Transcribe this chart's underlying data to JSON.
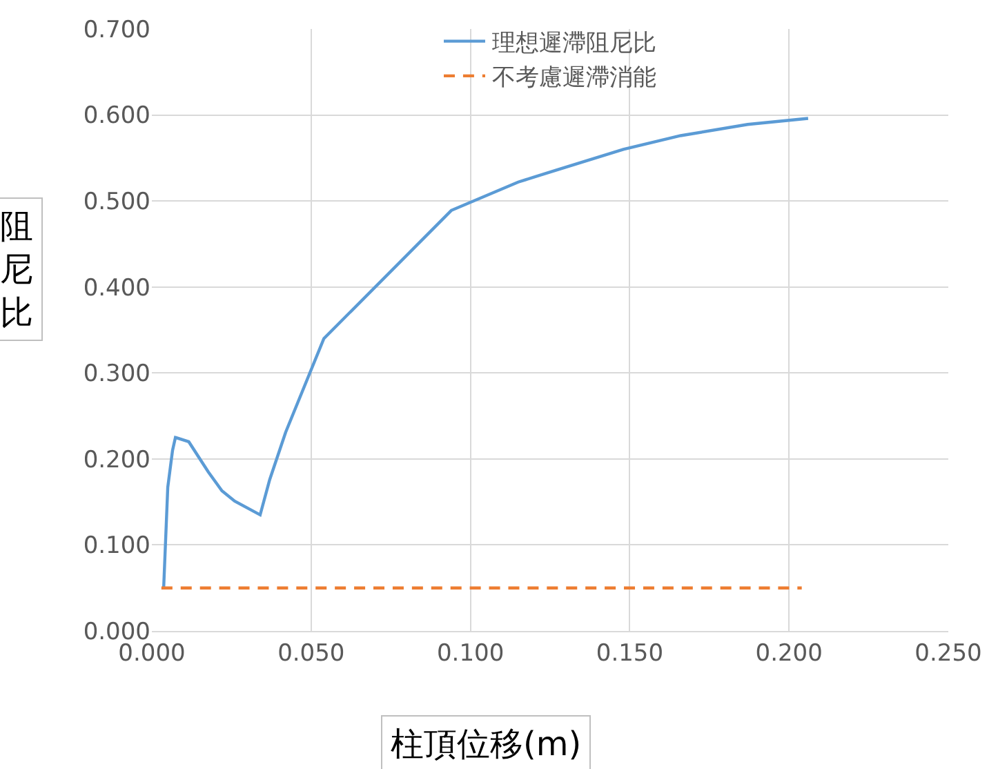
{
  "chart_data": {
    "type": "line",
    "xlabel": "柱頂位移(m)",
    "ylabel": "阻尼比",
    "xlim": [
      0,
      0.25
    ],
    "xticks": [
      {
        "value": 0,
        "label": "0.000"
      },
      {
        "value": 0.05,
        "label": "0.050"
      },
      {
        "value": 0.1,
        "label": "0.100"
      },
      {
        "value": 0.15,
        "label": "0.150"
      },
      {
        "value": 0.2,
        "label": "0.200"
      },
      {
        "value": 0.25,
        "label": "0.250"
      }
    ],
    "ylim": [
      0,
      0.7
    ],
    "yticks": [
      {
        "value": 0,
        "label": "0.000"
      },
      {
        "value": 0.1,
        "label": "0.100"
      },
      {
        "value": 0.2,
        "label": "0.200"
      },
      {
        "value": 0.3,
        "label": "0.300"
      },
      {
        "value": 0.4,
        "label": "0.400"
      },
      {
        "value": 0.5,
        "label": "0.500"
      },
      {
        "value": 0.6,
        "label": "0.600"
      },
      {
        "value": 0.7,
        "label": "0.700"
      }
    ],
    "grid": true,
    "legend": "top",
    "marker": "none",
    "series": [
      {
        "name": "理想遲滯阻尼比",
        "color": "#5b9bd5",
        "line_style": "solid",
        "x": [
          0.0037,
          0.005,
          0.0065,
          0.0074,
          0.0116,
          0.0177,
          0.022,
          0.026,
          0.034,
          0.037,
          0.042,
          0.054,
          0.094,
          0.115,
          0.127,
          0.148,
          0.166,
          0.187,
          0.206
        ],
        "values": [
          0.049,
          0.167,
          0.21,
          0.225,
          0.22,
          0.185,
          0.163,
          0.151,
          0.135,
          0.176,
          0.231,
          0.34,
          0.489,
          0.522,
          0.536,
          0.56,
          0.576,
          0.589,
          0.596
        ]
      },
      {
        "name": "不考慮遲滯消能",
        "color": "#ed7d31",
        "line_style": "dashed",
        "x": [
          0.003,
          0.204
        ],
        "values": [
          0.05,
          0.05
        ]
      }
    ]
  }
}
